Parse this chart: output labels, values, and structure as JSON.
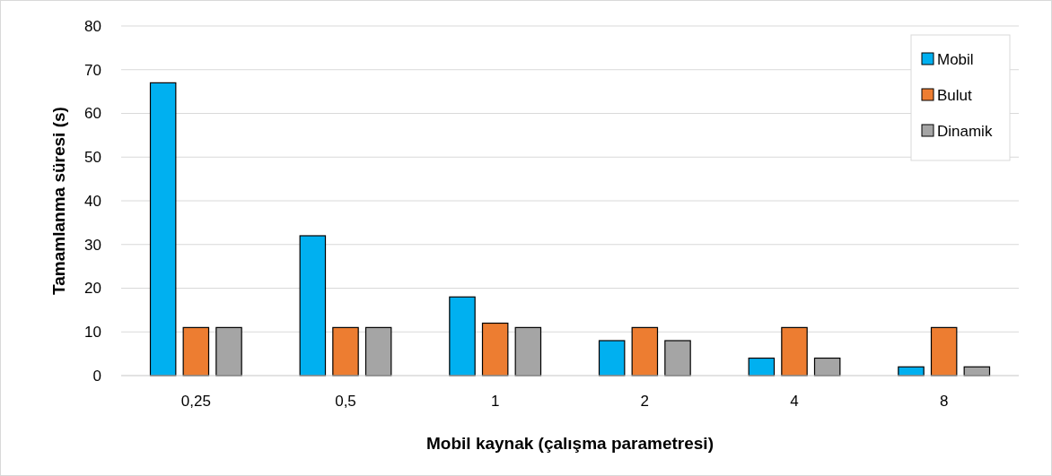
{
  "chart_data": {
    "type": "bar",
    "xlabel": "Mobil kaynak (çalışma parametresi)",
    "ylabel": "Tamamlanma süresi (s)",
    "categories": [
      "0,25",
      "0,5",
      "1",
      "2",
      "4",
      "8"
    ],
    "series": [
      {
        "name": "Mobil",
        "color": "#00b0f0",
        "values": [
          67,
          32,
          18,
          8,
          4,
          2
        ]
      },
      {
        "name": "Bulut",
        "color": "#ed7d31",
        "values": [
          11,
          11,
          12,
          11,
          11,
          11
        ]
      },
      {
        "name": "Dinamik",
        "color": "#a5a5a5",
        "values": [
          11,
          11,
          11,
          8,
          4,
          2
        ]
      }
    ],
    "ylim": [
      0,
      80
    ],
    "yticks": [
      0,
      10,
      20,
      30,
      40,
      50,
      60,
      70,
      80
    ],
    "grid": "y",
    "legend": "top right"
  }
}
